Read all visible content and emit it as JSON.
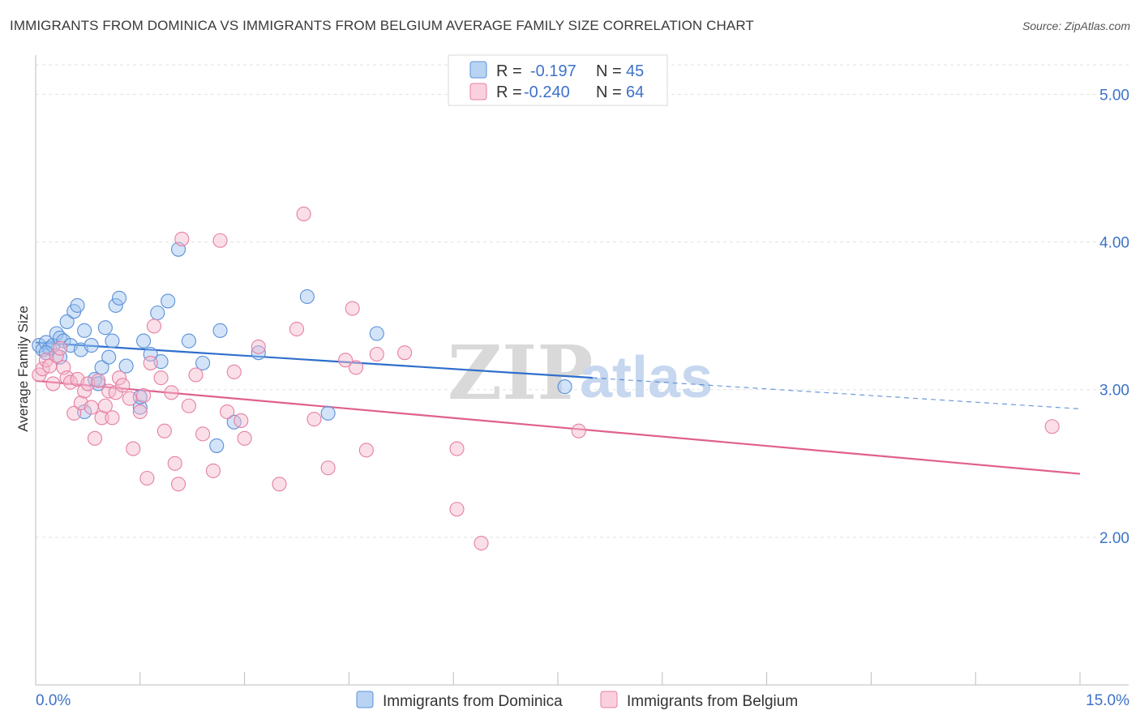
{
  "title": "IMMIGRANTS FROM DOMINICA VS IMMIGRANTS FROM BELGIUM AVERAGE FAMILY SIZE CORRELATION CHART",
  "source": "Source: ZipAtlas.com",
  "watermark": {
    "zip": "ZIP",
    "atlas": "atlas"
  },
  "legend_top": {
    "rows": [
      {
        "r_label": "R =",
        "r_value": "-0.197",
        "n_label": "N =",
        "n_value": "45",
        "color": "#9ec3ef"
      },
      {
        "r_label": "R =",
        "r_value": "-0.240",
        "n_label": "N =",
        "n_value": "64",
        "color": "#f5b8cc"
      }
    ]
  },
  "chart_data": {
    "type": "scatter",
    "ylabel": "Average Family Size",
    "xlim": [
      0,
      15
    ],
    "ylim": [
      1.0,
      5.2
    ],
    "x_tick_labels": [
      "0.0%",
      "15.0%"
    ],
    "y_ticks": [
      2.0,
      3.0,
      4.0,
      5.0
    ],
    "y_tick_labels": [
      "2.00",
      "3.00",
      "4.00",
      "5.00"
    ],
    "grid": true,
    "legend_position": "top-center",
    "series": [
      {
        "name": "Immigrants from Dominica",
        "color": "#9ec3ef",
        "edge": "#5b90d8",
        "line_color": "#2f6fcc",
        "trend": {
          "x0": 0.0,
          "y0": 3.32,
          "x1": 8.0,
          "y1": 3.08,
          "dash_x1": 15.0,
          "dash_y1": 2.87
        },
        "points": [
          [
            0.05,
            3.3
          ],
          [
            0.1,
            3.27
          ],
          [
            0.15,
            3.32
          ],
          [
            0.2,
            3.28
          ],
          [
            0.25,
            3.3
          ],
          [
            0.3,
            3.38
          ],
          [
            0.35,
            3.35
          ],
          [
            0.4,
            3.33
          ],
          [
            0.45,
            3.46
          ],
          [
            0.5,
            3.3
          ],
          [
            0.55,
            3.53
          ],
          [
            0.6,
            3.57
          ],
          [
            0.65,
            3.27
          ],
          [
            0.7,
            3.4
          ],
          [
            0.8,
            3.3
          ],
          [
            0.85,
            3.07
          ],
          [
            0.9,
            3.04
          ],
          [
            0.95,
            3.15
          ],
          [
            1.0,
            3.42
          ],
          [
            1.05,
            3.22
          ],
          [
            1.1,
            3.33
          ],
          [
            1.15,
            3.57
          ],
          [
            1.2,
            3.62
          ],
          [
            1.3,
            3.16
          ],
          [
            1.5,
            2.88
          ],
          [
            1.55,
            3.33
          ],
          [
            1.65,
            3.24
          ],
          [
            1.75,
            3.52
          ],
          [
            1.8,
            3.19
          ],
          [
            1.9,
            3.6
          ],
          [
            2.05,
            3.95
          ],
          [
            2.2,
            3.33
          ],
          [
            2.4,
            3.18
          ],
          [
            2.6,
            2.62
          ],
          [
            2.65,
            3.4
          ],
          [
            2.85,
            2.78
          ],
          [
            3.2,
            3.25
          ],
          [
            3.9,
            3.63
          ],
          [
            4.2,
            2.84
          ],
          [
            4.9,
            3.38
          ],
          [
            7.6,
            3.02
          ],
          [
            0.15,
            3.25
          ],
          [
            0.35,
            3.22
          ],
          [
            0.7,
            2.85
          ],
          [
            1.5,
            2.95
          ]
        ]
      },
      {
        "name": "Immigrants from Belgium",
        "color": "#f5b8cc",
        "edge": "#e57fa3",
        "line_color": "#e0608d",
        "trend": {
          "x0": 0.0,
          "y0": 3.06,
          "x1": 15.0,
          "y1": 2.43
        },
        "points": [
          [
            0.05,
            3.1
          ],
          [
            0.1,
            3.14
          ],
          [
            0.15,
            3.2
          ],
          [
            0.2,
            3.16
          ],
          [
            0.25,
            3.04
          ],
          [
            0.3,
            3.23
          ],
          [
            0.35,
            3.28
          ],
          [
            0.4,
            3.15
          ],
          [
            0.45,
            3.08
          ],
          [
            0.5,
            3.05
          ],
          [
            0.55,
            2.84
          ],
          [
            0.6,
            3.07
          ],
          [
            0.65,
            2.91
          ],
          [
            0.7,
            2.99
          ],
          [
            0.75,
            3.04
          ],
          [
            0.8,
            2.88
          ],
          [
            0.85,
            2.67
          ],
          [
            0.9,
            3.06
          ],
          [
            0.95,
            2.81
          ],
          [
            1.0,
            2.89
          ],
          [
            1.05,
            2.99
          ],
          [
            1.1,
            2.81
          ],
          [
            1.15,
            2.98
          ],
          [
            1.2,
            3.08
          ],
          [
            1.25,
            3.03
          ],
          [
            1.35,
            2.94
          ],
          [
            1.4,
            2.6
          ],
          [
            1.5,
            2.85
          ],
          [
            1.55,
            2.96
          ],
          [
            1.6,
            2.4
          ],
          [
            1.65,
            3.18
          ],
          [
            1.7,
            3.43
          ],
          [
            1.8,
            3.08
          ],
          [
            1.85,
            2.72
          ],
          [
            1.95,
            2.98
          ],
          [
            2.0,
            2.5
          ],
          [
            2.05,
            2.36
          ],
          [
            2.2,
            2.89
          ],
          [
            2.3,
            3.1
          ],
          [
            2.4,
            2.7
          ],
          [
            2.55,
            2.45
          ],
          [
            2.65,
            4.01
          ],
          [
            2.75,
            2.85
          ],
          [
            2.85,
            3.12
          ],
          [
            2.95,
            2.79
          ],
          [
            3.0,
            2.67
          ],
          [
            3.2,
            3.29
          ],
          [
            3.5,
            2.36
          ],
          [
            3.75,
            3.41
          ],
          [
            3.85,
            4.19
          ],
          [
            4.0,
            2.8
          ],
          [
            4.2,
            2.47
          ],
          [
            4.55,
            3.55
          ],
          [
            4.6,
            3.15
          ],
          [
            4.75,
            2.59
          ],
          [
            4.9,
            3.24
          ],
          [
            5.3,
            3.25
          ],
          [
            6.05,
            2.6
          ],
          [
            6.05,
            2.19
          ],
          [
            6.4,
            1.96
          ],
          [
            7.8,
            2.72
          ],
          [
            14.6,
            2.75
          ],
          [
            2.1,
            4.02
          ],
          [
            4.45,
            3.2
          ]
        ]
      }
    ]
  }
}
